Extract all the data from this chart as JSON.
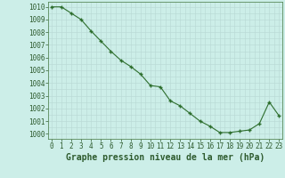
{
  "x": [
    0,
    1,
    2,
    3,
    4,
    5,
    6,
    7,
    8,
    9,
    10,
    11,
    12,
    13,
    14,
    15,
    16,
    17,
    18,
    19,
    20,
    21,
    22,
    23
  ],
  "y": [
    1010.0,
    1010.0,
    1009.5,
    1009.0,
    1008.1,
    1007.3,
    1006.5,
    1005.8,
    1005.3,
    1004.7,
    1003.8,
    1003.7,
    1002.6,
    1002.2,
    1001.6,
    1001.0,
    1000.6,
    1000.1,
    1000.1,
    1000.2,
    1000.3,
    1000.8,
    1002.5,
    1001.4
  ],
  "line_color": "#2d6e2d",
  "marker_color": "#2d6e2d",
  "bg_color": "#cceee8",
  "grid_color": "#b8d8d4",
  "title": "Graphe pression niveau de la mer (hPa)",
  "ylabel_values": [
    1000,
    1001,
    1002,
    1003,
    1004,
    1005,
    1006,
    1007,
    1008,
    1009,
    1010
  ],
  "xlabel_values": [
    0,
    1,
    2,
    3,
    4,
    5,
    6,
    7,
    8,
    9,
    10,
    11,
    12,
    13,
    14,
    15,
    16,
    17,
    18,
    19,
    20,
    21,
    22,
    23
  ],
  "ylim": [
    999.6,
    1010.4
  ],
  "xlim": [
    -0.3,
    23.3
  ],
  "title_fontsize": 7.0,
  "tick_fontsize": 5.5,
  "tick_color": "#2d5a2d",
  "spine_color": "#5a8a5a"
}
